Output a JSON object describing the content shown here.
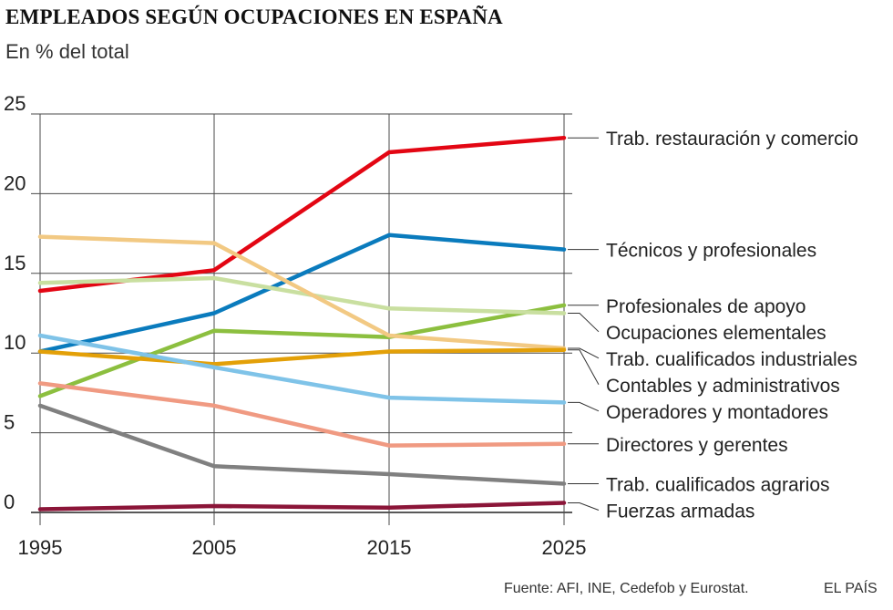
{
  "chart_data": {
    "type": "line",
    "title": "EMPLEADOS SEGÚN OCUPACIONES EN ESPAÑA",
    "subtitle": "En % del total",
    "xlabel": "",
    "ylabel": "",
    "x": [
      "1995",
      "2005",
      "2015",
      "2025"
    ],
    "ylim": [
      0,
      25
    ],
    "yticks": [
      "0",
      "5",
      "10",
      "15",
      "20",
      "25"
    ],
    "grid": true,
    "legend": "right, labels at line ends",
    "series": [
      {
        "name": "Trab. restauración y comercio",
        "color": "#e30613",
        "values": [
          13.9,
          15.2,
          22.6,
          23.5
        ]
      },
      {
        "name": "Técnicos y profesionales",
        "color": "#0a7bbd",
        "values": [
          10.1,
          12.5,
          17.4,
          16.5
        ]
      },
      {
        "name": "Profesionales de apoyo",
        "color": "#8cbf3f",
        "values": [
          7.3,
          11.4,
          11.0,
          13.0
        ]
      },
      {
        "name": "Ocupaciones elementales",
        "color": "#c9dfa0",
        "values": [
          14.4,
          14.7,
          12.8,
          12.5
        ]
      },
      {
        "name": "Trab. cualificados industriales",
        "color": "#f2c983",
        "values": [
          17.3,
          16.9,
          11.1,
          10.3
        ]
      },
      {
        "name": "Contables y administrativos",
        "color": "#e3a008",
        "values": [
          10.1,
          9.3,
          10.1,
          10.2
        ]
      },
      {
        "name": "Operadores y montadores",
        "color": "#7fc3e8",
        "values": [
          11.1,
          9.1,
          7.2,
          6.9
        ]
      },
      {
        "name": "Directores y gerentes",
        "color": "#f09a82",
        "values": [
          8.1,
          6.7,
          4.2,
          4.3
        ]
      },
      {
        "name": "Trab. cualificados agrarios",
        "color": "#808080",
        "values": [
          6.7,
          2.9,
          2.4,
          1.8
        ]
      },
      {
        "name": "Fuerzas armadas",
        "color": "#8b1538",
        "values": [
          0.2,
          0.4,
          0.3,
          0.6
        ]
      }
    ]
  },
  "footer": {
    "source": "Fuente: AFI, INE, Cedefob y Eurostat.",
    "brand": "EL PAÍS"
  }
}
